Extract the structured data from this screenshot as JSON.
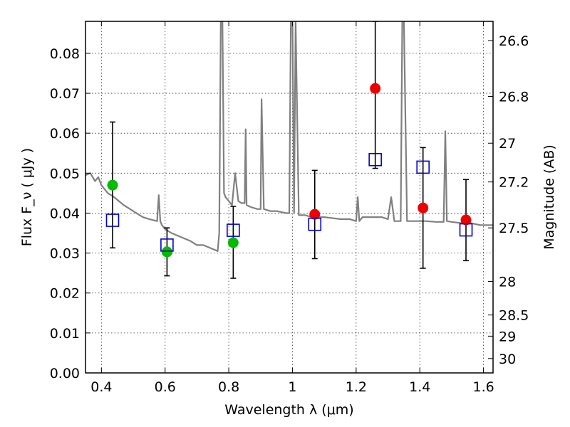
{
  "chart_data": {
    "type": "scatter",
    "xlabel": "Wavelength  λ (μm)",
    "ylabel": "Flux  F_ν  ( μJy )",
    "y2label": "Magnitude (AB)",
    "xlim": [
      0.35,
      1.63
    ],
    "ylim": [
      0.0,
      0.088
    ],
    "grid": true,
    "x_ticks": [
      0.4,
      0.6,
      0.8,
      1.0,
      1.2,
      1.4,
      1.6
    ],
    "x_tick_labels": [
      "0.4",
      "0.6",
      "0.8",
      "1",
      "1.2",
      "1.4",
      "1.6"
    ],
    "y_ticks": [
      0.0,
      0.01,
      0.02,
      0.03,
      0.04,
      0.05,
      0.06,
      0.07,
      0.08
    ],
    "y_tick_labels": [
      "0.00",
      "0.01",
      "0.02",
      "0.03",
      "0.04",
      "0.05",
      "0.06",
      "0.07",
      "0.08"
    ],
    "y2_tick_labels": [
      "26.6",
      "26.8",
      "27",
      "27.2",
      "27.5",
      "28",
      "28.5",
      "29",
      "30"
    ],
    "y2_tick_flux": [
      0.0832,
      0.0692,
      0.0575,
      0.0478,
      0.0363,
      0.0229,
      0.0145,
      0.0092,
      0.0036
    ],
    "series": [
      {
        "marker": "circle",
        "color": "#00bb00",
        "x": [
          0.435,
          0.606,
          0.814
        ],
        "y": [
          0.047,
          0.0303,
          0.0326
        ],
        "yerr_low": [
          0.0313,
          0.0243,
          0.0237
        ],
        "yerr_high": [
          0.0628,
          0.0363,
          0.0417
        ]
      },
      {
        "marker": "circle",
        "color": "#ee0000",
        "x": [
          1.07,
          1.26,
          1.41,
          1.545
        ],
        "y": [
          0.0397,
          0.0712,
          0.0413,
          0.0383
        ],
        "yerr_low": [
          0.0286,
          0.0512,
          0.0262,
          0.0281
        ],
        "yerr_high": [
          0.0507,
          0.088,
          0.0564,
          0.0484
        ]
      },
      {
        "marker": "square-open",
        "color": "#0000cc",
        "x": [
          0.435,
          0.606,
          0.814,
          1.07,
          1.26,
          1.41,
          1.545
        ],
        "y": [
          0.0382,
          0.032,
          0.0357,
          0.0372,
          0.0534,
          0.0515,
          0.0358
        ]
      },
      {
        "marker": "line",
        "color": "#808080",
        "x": [
          0.35,
          0.365,
          0.38,
          0.39,
          0.4,
          0.41,
          0.42,
          0.43,
          0.44,
          0.455,
          0.47,
          0.49,
          0.51,
          0.53,
          0.55,
          0.575,
          0.58,
          0.585,
          0.59,
          0.6,
          0.62,
          0.65,
          0.68,
          0.7,
          0.72,
          0.75,
          0.765,
          0.77,
          0.775,
          0.78,
          0.785,
          0.79,
          0.8,
          0.81,
          0.82,
          0.83,
          0.84,
          0.85,
          0.853,
          0.856,
          0.87,
          0.89,
          0.9,
          0.903,
          0.91,
          0.93,
          0.95,
          0.98,
          0.99,
          0.995,
          1.0,
          1.005,
          1.01,
          1.02,
          1.04,
          1.06,
          1.08,
          1.1,
          1.12,
          1.15,
          1.18,
          1.2,
          1.205,
          1.21,
          1.22,
          1.25,
          1.28,
          1.3,
          1.31,
          1.32,
          1.34,
          1.345,
          1.35,
          1.36,
          1.38,
          1.4,
          1.42,
          1.45,
          1.475,
          1.48,
          1.485,
          1.5,
          1.53,
          1.56,
          1.59,
          1.63
        ],
        "y": [
          0.0495,
          0.05,
          0.048,
          0.049,
          0.047,
          0.046,
          0.045,
          0.0445,
          0.044,
          0.043,
          0.042,
          0.041,
          0.04,
          0.039,
          0.0385,
          0.038,
          0.0445,
          0.038,
          0.037,
          0.036,
          0.035,
          0.034,
          0.033,
          0.032,
          0.032,
          0.031,
          0.0305,
          0.035,
          0.088,
          0.088,
          0.045,
          0.044,
          0.043,
          0.042,
          0.05,
          0.043,
          0.0425,
          0.0425,
          0.061,
          0.042,
          0.0415,
          0.041,
          0.041,
          0.0685,
          0.041,
          0.0405,
          0.0405,
          0.04,
          0.04,
          0.088,
          0.088,
          0.04,
          0.088,
          0.0395,
          0.0395,
          0.039,
          0.039,
          0.039,
          0.0388,
          0.0385,
          0.0385,
          0.038,
          0.044,
          0.038,
          0.039,
          0.039,
          0.039,
          0.0385,
          0.044,
          0.038,
          0.038,
          0.088,
          0.088,
          0.038,
          0.038,
          0.038,
          0.038,
          0.0378,
          0.0378,
          0.0605,
          0.038,
          0.0378,
          0.0375,
          0.0375,
          0.037,
          0.037
        ]
      }
    ]
  }
}
